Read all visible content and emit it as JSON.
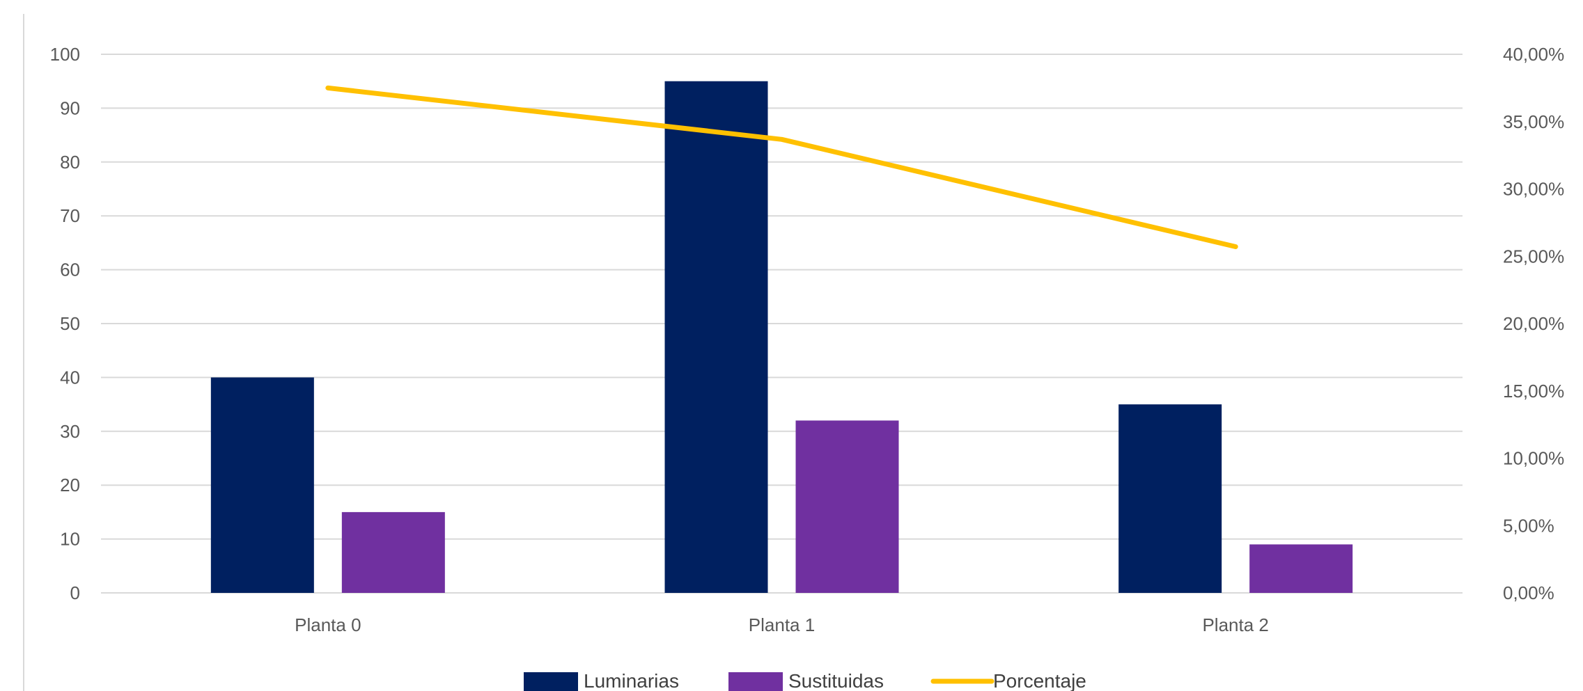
{
  "chart_data": {
    "type": "bar",
    "title": "",
    "xlabel": "",
    "ylabel": "",
    "categories": [
      "Planta 0",
      "Planta 1",
      "Planta 2"
    ],
    "series": [
      {
        "name": "Luminarias",
        "type": "bar",
        "axis": "left",
        "color": "#002060",
        "values": [
          40,
          95,
          35
        ]
      },
      {
        "name": "Sustituidas",
        "type": "bar",
        "axis": "left",
        "color": "#7030A0",
        "values": [
          15,
          32,
          9
        ]
      },
      {
        "name": "Porcentaje",
        "type": "line",
        "axis": "right",
        "color": "#FFC000",
        "values": [
          0.375,
          0.3368,
          0.2571
        ]
      }
    ],
    "ylim": [
      0,
      100
    ],
    "y2lim": [
      0,
      0.4
    ],
    "y_ticks": [
      "0",
      "10",
      "20",
      "30",
      "40",
      "50",
      "60",
      "70",
      "80",
      "90",
      "100"
    ],
    "y2_ticks": [
      "0,00%",
      "5,00%",
      "10,00%",
      "15,00%",
      "20,00%",
      "25,00%",
      "30,00%",
      "35,00%",
      "40,00%"
    ],
    "grid": true,
    "legend_position": "bottom"
  }
}
